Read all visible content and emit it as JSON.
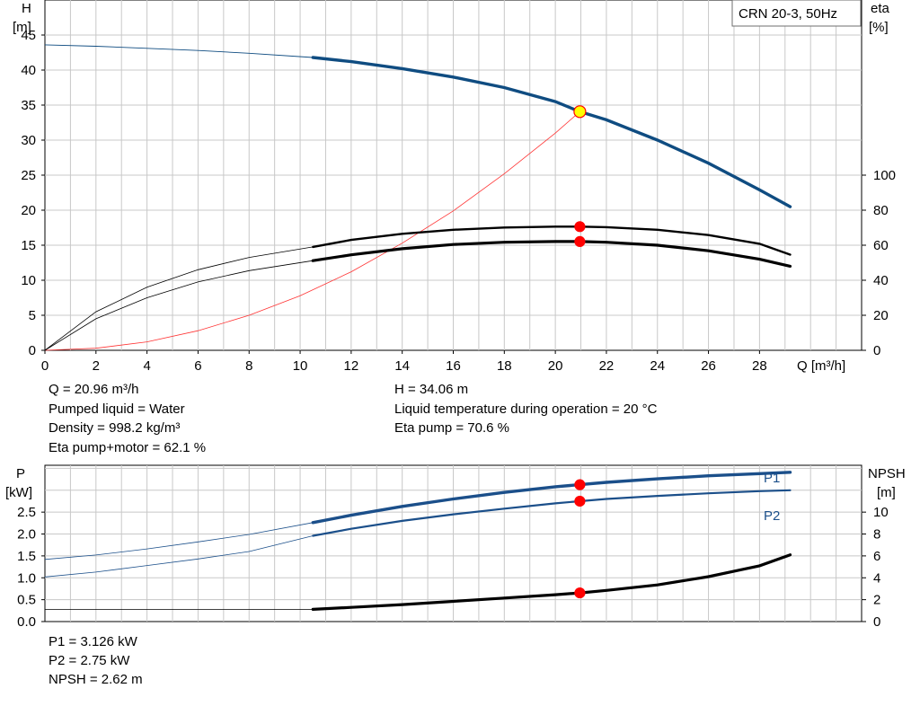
{
  "pump_label": "CRN 20-3, 50Hz",
  "colors": {
    "head_curve": "#0f4c81",
    "eta_curve": "#000000",
    "npsh_curve": "#000000",
    "power_curve": "#1b4f8a",
    "duty_marker": "#ff0000",
    "head_duty_marker": "#ffff00",
    "system_curve": "#ff3333",
    "grid": "#c8c8c8"
  },
  "info": {
    "q": "Q = 20.96 m³/h",
    "h": "H = 34.06 m",
    "liquid": "Pumped liquid = Water",
    "temp": "Liquid temperature during operation = 20 °C",
    "density": "Density = 998.2 kg/m³",
    "eta_pump": "Eta pump = 70.6 %",
    "eta_total": "Eta pump+motor = 62.1 %",
    "p1": "P1 = 3.126 kW",
    "p2": "P2 = 2.75 kW",
    "npsh": "NPSH = 2.62 m"
  },
  "chart_data": [
    {
      "type": "line",
      "title": "CRN 20-3, 50Hz",
      "xlabel": "Q [m³/h]",
      "ylabel": "H\n[m]",
      "y2label": "eta\n[%]",
      "xlim": [
        0,
        32
      ],
      "ylim": [
        0,
        50
      ],
      "y2lim": [
        0,
        200
      ],
      "xticks": [
        0,
        2,
        4,
        6,
        8,
        10,
        12,
        14,
        16,
        18,
        20,
        22,
        24,
        26,
        28
      ],
      "yticks": [
        0,
        5,
        10,
        15,
        20,
        25,
        30,
        35,
        40,
        45
      ],
      "y2ticks": [
        0,
        20,
        40,
        60,
        80,
        100
      ],
      "grid": true,
      "series": [
        {
          "name": "H",
          "axis": "left",
          "x": [
            0,
            2,
            4,
            6,
            8,
            10.5,
            12,
            14,
            16,
            18,
            20,
            20.96,
            22,
            24,
            26,
            28,
            29.2
          ],
          "y": [
            43.6,
            43.4,
            43.1,
            42.8,
            42.4,
            41.8,
            41.2,
            40.2,
            39.0,
            37.5,
            35.5,
            34.06,
            32.9,
            30.0,
            26.7,
            22.9,
            20.5
          ],
          "operating_range": [
            10.5,
            29.2
          ],
          "duty_point": [
            20.96,
            34.06
          ]
        },
        {
          "name": "Eta pump",
          "axis": "right",
          "x": [
            0,
            2,
            4,
            6,
            8,
            10.5,
            12,
            14,
            16,
            18,
            20,
            20.96,
            22,
            24,
            26,
            28,
            29.2
          ],
          "y": [
            0,
            22,
            36,
            46,
            53,
            59,
            63,
            66.5,
            68.8,
            70.1,
            70.6,
            70.6,
            70.3,
            68.8,
            65.8,
            60.8,
            54.6
          ],
          "operating_range": [
            10.5,
            29.2
          ],
          "duty_point": [
            20.96,
            70.6
          ]
        },
        {
          "name": "Eta pump+motor",
          "axis": "right",
          "x": [
            0,
            2,
            4,
            6,
            8,
            10.5,
            12,
            14,
            16,
            18,
            20,
            20.96,
            22,
            24,
            26,
            28,
            29.2
          ],
          "y": [
            0,
            18,
            30,
            39,
            45.5,
            51.2,
            54.5,
            58,
            60.4,
            61.7,
            62.1,
            62.1,
            61.7,
            60.0,
            56.8,
            52.0,
            48.0
          ],
          "operating_range": [
            10.5,
            29.2
          ],
          "duty_point": [
            20.96,
            62.1
          ]
        },
        {
          "name": "System curve",
          "axis": "left",
          "x": [
            0,
            2,
            4,
            6,
            8,
            10,
            12,
            14,
            16,
            18,
            20,
            20.96
          ],
          "y": [
            0,
            0.3,
            1.2,
            2.8,
            5.0,
            7.8,
            11.2,
            15.3,
            19.9,
            25.2,
            31.0,
            34.06
          ]
        }
      ]
    },
    {
      "type": "line",
      "xlabel": "",
      "ylabel": "P\n[kW]",
      "y2label": "NPSH\n[m]",
      "xlim": [
        0,
        32
      ],
      "ylim": [
        0,
        3.57
      ],
      "y2lim": [
        0,
        14.28
      ],
      "yticks": [
        0.0,
        0.5,
        1.0,
        1.5,
        2.0,
        2.5
      ],
      "y2ticks": [
        0,
        2,
        4,
        6,
        8,
        10
      ],
      "grid": true,
      "series": [
        {
          "name": "P1",
          "axis": "left",
          "x": [
            0,
            2,
            4,
            6,
            8,
            10.5,
            12,
            14,
            16,
            18,
            20,
            20.96,
            22,
            24,
            26,
            28,
            29.2
          ],
          "y": [
            1.42,
            1.52,
            1.66,
            1.82,
            1.99,
            2.26,
            2.43,
            2.63,
            2.8,
            2.95,
            3.08,
            3.126,
            3.18,
            3.26,
            3.33,
            3.38,
            3.41
          ],
          "operating_range": [
            10.5,
            29.2
          ],
          "duty_point": [
            20.96,
            3.126
          ]
        },
        {
          "name": "P2",
          "axis": "left",
          "x": [
            0,
            2,
            4,
            6,
            8,
            10.5,
            12,
            14,
            16,
            18,
            20,
            20.96,
            22,
            24,
            26,
            28,
            29.2
          ],
          "y": [
            1.02,
            1.13,
            1.28,
            1.43,
            1.6,
            1.96,
            2.12,
            2.3,
            2.45,
            2.58,
            2.7,
            2.75,
            2.8,
            2.87,
            2.93,
            2.98,
            3.0
          ],
          "operating_range": [
            10.5,
            29.2
          ],
          "duty_point": [
            20.96,
            2.75
          ]
        },
        {
          "name": "NPSH",
          "axis": "right",
          "x": [
            0,
            4,
            8,
            10.5,
            12,
            14,
            16,
            18,
            20,
            20.96,
            22,
            24,
            26,
            28,
            29.2
          ],
          "y": [
            1.1,
            1.1,
            1.1,
            1.12,
            1.3,
            1.55,
            1.85,
            2.15,
            2.45,
            2.62,
            2.85,
            3.35,
            4.1,
            5.1,
            6.1
          ],
          "operating_range": [
            10.5,
            29.2
          ],
          "duty_point": [
            20.96,
            2.62
          ]
        }
      ]
    }
  ],
  "curve_labels": {
    "p1": "P1",
    "p2": "P2"
  }
}
